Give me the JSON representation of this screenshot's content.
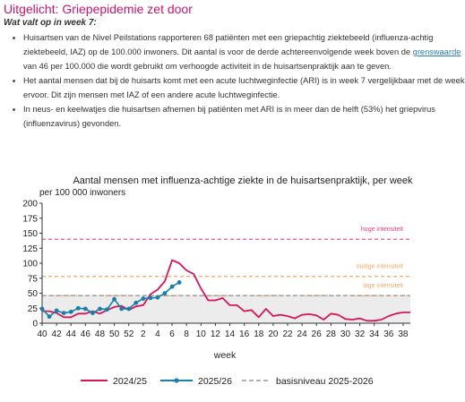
{
  "section": {
    "heading": "Uitgelicht: Griepepidemie zet door",
    "subheading": "Wat valt op in week 7:"
  },
  "bullets": {
    "b1_part1": "Huisartsen van de Nivel Peilstations rapporteren 68 patiënten met een griepachtig ziektebeeld (influenza-achtig ziektebeeld, IAZ) op de 100.000 inwoners. Dit aantal is voor de derde achtereenvolgende week boven de ",
    "b1_link": "grenswaarde",
    "b1_part2": " van 46 per 100.000 die wordt gebruikt om verhoogde activiteit in de huisartsenpraktijk aan te geven.",
    "b2": "Het aantal mensen dat bij de huisarts komt met een acute luchtweginfectie (ARI) is in week 7 vergelijkbaar met de week ervoor. Dit zijn mensen met IAZ of een andere acute luchtweginfectie.",
    "b3": "In neus- en keelwatjes die huisartsen afnemen bij patiënten met ARI is in meer dan de helft (53%) het griepvirus (influenzavirus) gevonden."
  },
  "chart_data": {
    "type": "line",
    "title": "Aantal mensen met influenza-achtige ziekte in de huisartsenpraktijk, per week",
    "subtitle": "per 100 000 inwoners",
    "xlabel": "week",
    "ylabel": "",
    "ylim": [
      0,
      200
    ],
    "yticks": [
      0,
      25,
      50,
      75,
      100,
      125,
      150,
      175,
      200
    ],
    "x_tick_labels": [
      "40",
      "42",
      "44",
      "46",
      "48",
      "50",
      "52",
      "2",
      "4",
      "6",
      "8",
      "10",
      "12",
      "14",
      "16",
      "18",
      "20",
      "22",
      "24",
      "26",
      "28",
      "30",
      "32",
      "34",
      "36",
      "38"
    ],
    "grid": false,
    "legend_position": "bottom",
    "thresholds": [
      {
        "label": "hoge intensiteit",
        "value": 140,
        "color": "#e8407d"
      },
      {
        "label": "matige intensiteit",
        "value": 78,
        "color": "#f0a868"
      },
      {
        "label": "lage intensiteit",
        "value": 46,
        "color": "#f0a868"
      }
    ],
    "series": [
      {
        "name": "2024/25",
        "color": "#d6155d",
        "values": [
          20,
          20,
          17,
          10,
          10,
          16,
          16,
          20,
          16,
          22,
          27,
          29,
          22,
          28,
          30,
          48,
          56,
          70,
          105,
          100,
          88,
          82,
          58,
          38,
          38,
          42,
          30,
          30,
          20,
          22,
          10,
          24,
          12,
          14,
          12,
          8,
          14,
          15,
          13,
          6,
          16,
          14,
          7,
          6,
          8,
          4,
          4,
          6,
          12,
          16,
          18,
          18
        ]
      },
      {
        "name": "2025/26",
        "color": "#1a7fa8",
        "values": [
          24,
          11,
          21,
          17,
          19,
          25,
          24,
          17,
          24,
          23,
          40,
          24,
          24,
          34,
          41,
          42,
          43,
          50,
          61,
          68
        ]
      }
    ],
    "baseline": {
      "name": "basisniveau 2025-2026",
      "value": 46,
      "color": "#999999"
    }
  }
}
